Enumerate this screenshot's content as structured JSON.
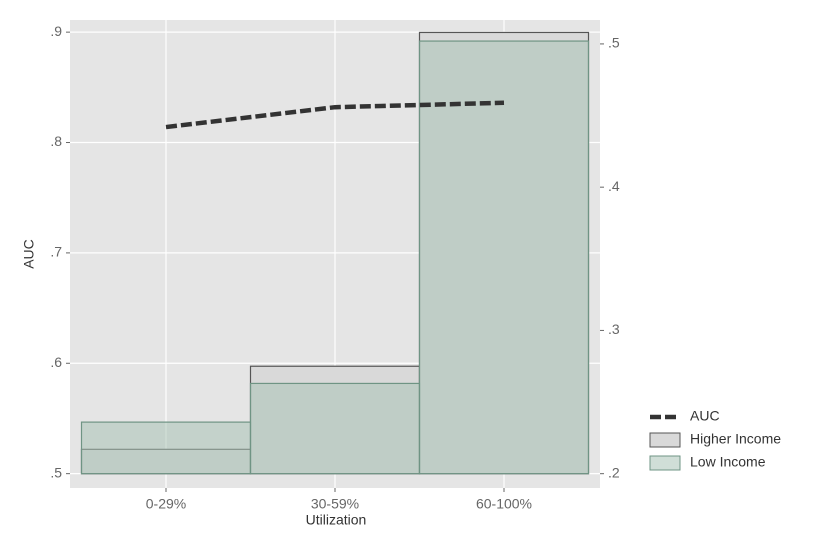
{
  "chart_data": {
    "type": "combo",
    "xlabel": "Utilization",
    "ylabel": "AUC",
    "categories": [
      "0-29%",
      "30-59%",
      "60-100%"
    ],
    "series": [
      {
        "name": "AUC",
        "type": "line",
        "color": "#333333",
        "axis": "y",
        "values": [
          0.814,
          0.832,
          0.836
        ]
      },
      {
        "name": "Higher Income",
        "type": "bar",
        "color": "#d9d9d9",
        "axis": "y2",
        "values": [
          0.217,
          0.275,
          0.508
        ]
      },
      {
        "name": "Low Income",
        "type": "bar",
        "color": "#a9c2b6",
        "axis": "y2",
        "values": [
          0.236,
          0.263,
          0.502
        ]
      }
    ],
    "ylim": [
      0.487,
      0.911
    ],
    "yticks": [
      {
        "value": 0.5,
        "label": ".5"
      },
      {
        "value": 0.6,
        "label": ".6"
      },
      {
        "value": 0.7,
        "label": ".7"
      },
      {
        "value": 0.8,
        "label": ".8"
      },
      {
        "value": 0.9,
        "label": ".9"
      }
    ],
    "y2lim": [
      0.19,
      0.5167
    ],
    "y2ticks": [
      {
        "value": 0.2,
        "label": ".2"
      },
      {
        "value": 0.3,
        "label": ".3"
      },
      {
        "value": 0.4,
        "label": ".4"
      },
      {
        "value": 0.5,
        "label": ".5"
      }
    ],
    "grid": true,
    "legend": "bottom-right"
  }
}
